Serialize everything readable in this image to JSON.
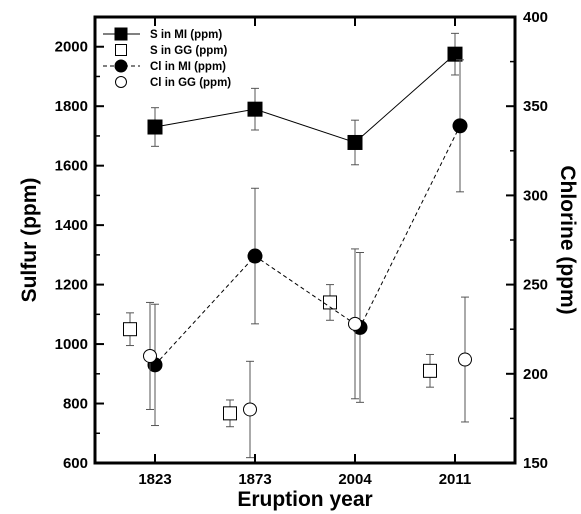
{
  "chart_data": {
    "type": "scatter",
    "xlabel": "Eruption year",
    "ylabel_left": "Sulfur (ppm)",
    "ylabel_right": "Chlorine (ppm)",
    "categories": [
      "1823",
      "1873",
      "2004",
      "2011"
    ],
    "ylim_left": [
      600,
      2100
    ],
    "ylim_right": [
      150,
      400
    ],
    "yticks_left": [
      "600",
      "800",
      "1000",
      "1200",
      "1400",
      "1600",
      "1800",
      "2000"
    ],
    "yticks_right": [
      "150",
      "200",
      "250",
      "300",
      "350",
      "400"
    ],
    "legend_position": "top-left",
    "grid": false,
    "series": [
      {
        "name": "S in MI (ppm)",
        "axis": "left",
        "marker": "square-filled",
        "line": "solid",
        "x": [
          1,
          2,
          3,
          4
        ],
        "values": [
          1730,
          1790,
          1678,
          1975
        ],
        "errors": [
          65,
          70,
          75,
          70
        ]
      },
      {
        "name": "S in GG (ppm)",
        "axis": "left",
        "marker": "square-open",
        "line": "none",
        "x": [
          0.75,
          1.75,
          2.75,
          3.75
        ],
        "values": [
          1050,
          767,
          1140,
          910
        ],
        "errors": [
          55,
          45,
          60,
          55
        ]
      },
      {
        "name": "Cl in MI (ppm)",
        "axis": "right",
        "marker": "circle-filled",
        "line": "dashed",
        "x": [
          1,
          2,
          3.05,
          4.05
        ],
        "values": [
          205,
          266,
          226,
          339
        ],
        "errors": [
          34,
          38,
          42,
          37
        ]
      },
      {
        "name": "Cl in GG (ppm)",
        "axis": "right",
        "marker": "circle-open",
        "line": "none",
        "x": [
          0.95,
          1.95,
          3,
          4.1
        ],
        "values": [
          210,
          180,
          228,
          208
        ],
        "errors": [
          30,
          27,
          42,
          35
        ]
      }
    ]
  },
  "colors": {
    "marker": "#000000",
    "background": "#ffffff"
  }
}
